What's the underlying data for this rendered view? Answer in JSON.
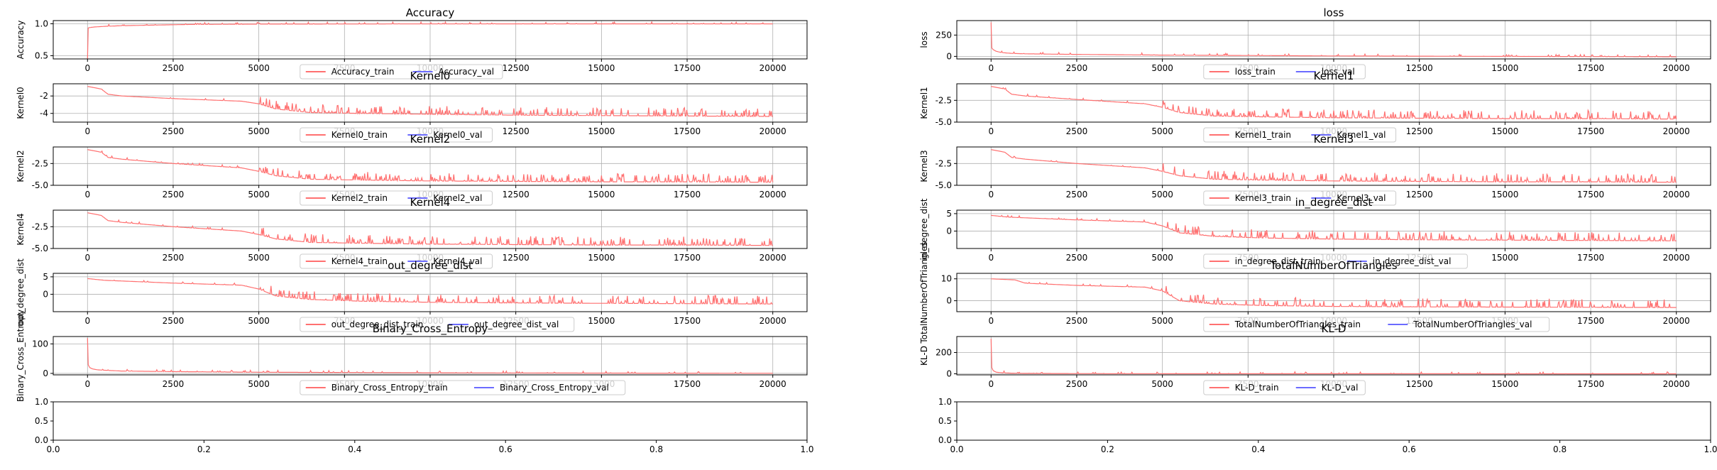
{
  "figure": {
    "colors": {
      "train": "#ff7070",
      "val": "#6b6bff",
      "grid": "#b0b0b0"
    },
    "ticks_x": [
      "0",
      "2500",
      "5000",
      "7500",
      "10000",
      "12500",
      "15000",
      "17500",
      "20000"
    ]
  },
  "chart_data": [
    {
      "type": "line",
      "title": "Accuracy",
      "ylabel": "Accuracy",
      "xlim": [
        0,
        20000
      ],
      "ylim": [
        0.45,
        1.05
      ],
      "yticks": [
        "0.5",
        "1.0"
      ],
      "ytick_values": [
        0.5,
        1.0
      ],
      "series": [
        {
          "name": "Accuracy_train",
          "x": [
            0,
            10,
            50,
            200,
            500,
            1000,
            2000,
            3000,
            5000,
            10000,
            15000,
            20000
          ],
          "y": [
            0.45,
            0.93,
            0.94,
            0.95,
            0.96,
            0.97,
            0.98,
            0.99,
            0.995,
            0.998,
            0.999,
            0.999
          ]
        },
        {
          "name": "Accuracy_val",
          "x": [],
          "y": []
        }
      ]
    },
    {
      "type": "line",
      "title": "loss",
      "ylabel": "loss",
      "xlim": [
        0,
        20000
      ],
      "ylim": [
        -30,
        420
      ],
      "yticks": [
        "0",
        "250"
      ],
      "ytick_values": [
        0,
        250
      ],
      "series": [
        {
          "name": "loss_train",
          "x": [
            0,
            20,
            60,
            150,
            300,
            600,
            1000,
            2000,
            5000,
            10000,
            15000,
            20000
          ],
          "y": [
            400,
            100,
            80,
            60,
            45,
            35,
            30,
            25,
            15,
            5,
            0,
            -5
          ]
        },
        {
          "name": "loss_val",
          "x": [],
          "y": []
        }
      ]
    },
    {
      "type": "line",
      "title": "Kernel0",
      "ylabel": "Kernel0",
      "xlim": [
        0,
        20000
      ],
      "ylim": [
        -5.0,
        -0.6
      ],
      "yticks": [
        "-2",
        "-4"
      ],
      "ytick_values": [
        -2,
        -4
      ],
      "series": [
        {
          "name": "Kernel0_train",
          "x": [
            0,
            400,
            600,
            1000,
            2500,
            4500,
            5000,
            5500,
            6500,
            8000,
            10000,
            12500,
            15000,
            17500,
            20000
          ],
          "y": [
            -0.9,
            -1.2,
            -1.8,
            -2.0,
            -2.3,
            -2.6,
            -2.9,
            -3.5,
            -3.9,
            -4.0,
            -4.1,
            -4.2,
            -4.25,
            -4.3,
            -4.35
          ]
        },
        {
          "name": "Kernel0_val",
          "x": [],
          "y": []
        }
      ]
    },
    {
      "type": "line",
      "title": "Kernel1",
      "ylabel": "Kernel1",
      "xlim": [
        0,
        20000
      ],
      "ylim": [
        -5.0,
        -0.6
      ],
      "yticks": [
        "-2.5",
        "-5.0"
      ],
      "ytick_values": [
        -2.5,
        -5.0
      ],
      "series": [
        {
          "name": "Kernel1_train",
          "x": [
            0,
            400,
            600,
            1000,
            2500,
            4500,
            5000,
            5500,
            6500,
            8000,
            10000,
            12500,
            15000,
            17500,
            20000
          ],
          "y": [
            -0.9,
            -1.2,
            -1.8,
            -2.0,
            -2.4,
            -2.9,
            -3.3,
            -3.9,
            -4.3,
            -4.4,
            -4.5,
            -4.55,
            -4.6,
            -4.6,
            -4.65
          ]
        },
        {
          "name": "Kernel1_val",
          "x": [],
          "y": []
        }
      ]
    },
    {
      "type": "line",
      "title": "Kernel2",
      "ylabel": "Kernel2",
      "xlim": [
        0,
        20000
      ],
      "ylim": [
        -5.0,
        -0.6
      ],
      "yticks": [
        "-2.5",
        "-5.0"
      ],
      "ytick_values": [
        -2.5,
        -5.0
      ],
      "series": [
        {
          "name": "Kernel2_train",
          "x": [
            0,
            400,
            600,
            1000,
            2500,
            4500,
            5000,
            5500,
            6500,
            8000,
            10000,
            12500,
            15000,
            17500,
            20000
          ],
          "y": [
            -0.9,
            -1.2,
            -1.8,
            -2.0,
            -2.5,
            -3.0,
            -3.4,
            -3.9,
            -4.3,
            -4.4,
            -4.5,
            -4.55,
            -4.6,
            -4.6,
            -4.65
          ]
        },
        {
          "name": "Kernel2_val",
          "x": [],
          "y": []
        }
      ]
    },
    {
      "type": "line",
      "title": "Kernel3",
      "ylabel": "Kernel3",
      "xlim": [
        0,
        20000
      ],
      "ylim": [
        -5.0,
        -0.6
      ],
      "yticks": [
        "-2.5",
        "-5.0"
      ],
      "ytick_values": [
        -2.5,
        -5.0
      ],
      "series": [
        {
          "name": "Kernel3_train",
          "x": [
            0,
            400,
            600,
            1000,
            2500,
            4500,
            5000,
            5500,
            6500,
            8000,
            10000,
            12500,
            15000,
            17500,
            20000
          ],
          "y": [
            -0.9,
            -1.2,
            -1.8,
            -2.0,
            -2.5,
            -3.0,
            -3.4,
            -3.9,
            -4.3,
            -4.4,
            -4.5,
            -4.55,
            -4.6,
            -4.6,
            -4.65
          ]
        },
        {
          "name": "Kernel3_val",
          "x": [],
          "y": []
        }
      ]
    },
    {
      "type": "line",
      "title": "Kernel4",
      "ylabel": "Kernel4",
      "xlim": [
        0,
        20000
      ],
      "ylim": [
        -5.0,
        -0.6
      ],
      "yticks": [
        "-2.5",
        "-5.0"
      ],
      "ytick_values": [
        -2.5,
        -5.0
      ],
      "series": [
        {
          "name": "Kernel4_train",
          "x": [
            0,
            400,
            600,
            1000,
            2500,
            4500,
            5000,
            5500,
            6500,
            8000,
            10000,
            12500,
            15000,
            17500,
            20000
          ],
          "y": [
            -0.9,
            -1.2,
            -1.8,
            -2.0,
            -2.5,
            -3.0,
            -3.4,
            -3.9,
            -4.3,
            -4.4,
            -4.5,
            -4.55,
            -4.6,
            -4.6,
            -4.65
          ]
        },
        {
          "name": "Kernel4_val",
          "x": [],
          "y": []
        }
      ]
    },
    {
      "type": "line",
      "title": "in_degree_dist",
      "ylabel": "in_degree_dist",
      "xlim": [
        0,
        20000
      ],
      "ylim": [
        -5.0,
        6.0
      ],
      "yticks": [
        "5",
        "0"
      ],
      "ytick_values": [
        5,
        0
      ],
      "series": [
        {
          "name": "in_degree_dist_train",
          "x": [
            0,
            500,
            1000,
            2500,
            4500,
            5000,
            5500,
            6500,
            8000,
            10000,
            12500,
            15000,
            17500,
            20000
          ],
          "y": [
            4.5,
            4.0,
            3.8,
            3.2,
            2.6,
            1.5,
            -0.5,
            -1.5,
            -2.0,
            -2.3,
            -2.5,
            -2.6,
            -2.7,
            -2.8
          ]
        },
        {
          "name": "in_degree_dist_val",
          "x": [],
          "y": []
        }
      ]
    },
    {
      "type": "line",
      "title": "out_degree_dist",
      "ylabel": "out_degree_dist",
      "xlim": [
        0,
        20000
      ],
      "ylim": [
        -5.0,
        6.0
      ],
      "yticks": [
        "5",
        "0"
      ],
      "ytick_values": [
        5,
        0
      ],
      "series": [
        {
          "name": "out_degree_dist_train",
          "x": [
            0,
            500,
            1000,
            2500,
            4500,
            5000,
            5500,
            6500,
            8000,
            10000,
            12500,
            15000,
            17500,
            20000
          ],
          "y": [
            4.5,
            4.0,
            3.8,
            3.2,
            2.6,
            1.5,
            -0.5,
            -1.5,
            -2.0,
            -2.3,
            -2.5,
            -2.6,
            -2.7,
            -2.8
          ]
        },
        {
          "name": "out_degree_dist_val",
          "x": [],
          "y": []
        }
      ]
    },
    {
      "type": "line",
      "title": "TotalNumberOfTriangles",
      "ylabel": "TotalNumberOfTriangles",
      "xlim": [
        0,
        20000
      ],
      "ylim": [
        -5.0,
        12.5
      ],
      "yticks": [
        "10",
        "0"
      ],
      "ytick_values": [
        10,
        0
      ],
      "series": [
        {
          "name": "TotalNumberOfTriangles_train",
          "x": [
            0,
            700,
            1000,
            2500,
            4500,
            5000,
            5500,
            6500,
            8000,
            10000,
            12500,
            15000,
            17500,
            20000
          ],
          "y": [
            10,
            9.5,
            8,
            7,
            6.2,
            4.5,
            0,
            -1.5,
            -2.2,
            -2.6,
            -2.8,
            -2.9,
            -3.0,
            -3.1
          ]
        },
        {
          "name": "TotalNumberOfTriangles_val",
          "x": [],
          "y": []
        }
      ]
    },
    {
      "type": "line",
      "title": "Binary_Cross_Entropy",
      "ylabel": "Binary_Cross_Entropy",
      "xlim": [
        0,
        20000
      ],
      "ylim": [
        -5,
        125
      ],
      "yticks": [
        "100",
        "0"
      ],
      "ytick_values": [
        100,
        0
      ],
      "series": [
        {
          "name": "Binary_Cross_Entropy_train",
          "x": [
            0,
            20,
            60,
            150,
            300,
            600,
            1000,
            2500,
            5000,
            10000,
            15000,
            20000
          ],
          "y": [
            120,
            30,
            20,
            15,
            12,
            10,
            8,
            6,
            4,
            2,
            1,
            0.5
          ]
        },
        {
          "name": "Binary_Cross_Entropy_val",
          "x": [],
          "y": []
        }
      ]
    },
    {
      "type": "line",
      "title": "KL-D",
      "ylabel": "KL-D",
      "xlim": [
        0,
        20000
      ],
      "ylim": [
        -10,
        350
      ],
      "yticks": [
        "200",
        "0"
      ],
      "ytick_values": [
        200,
        0
      ],
      "series": [
        {
          "name": "KL-D_train",
          "x": [
            0,
            20,
            60,
            150,
            300,
            600,
            1000,
            2500,
            5000,
            10000,
            15000,
            20000
          ],
          "y": [
            330,
            60,
            30,
            15,
            10,
            6,
            4,
            2,
            1,
            0.5,
            0.3,
            0.2
          ]
        },
        {
          "name": "KL-D_val",
          "x": [],
          "y": []
        }
      ]
    },
    {
      "type": "line",
      "title": "",
      "ylabel": "",
      "xlim": [
        0,
        1
      ],
      "ylim": [
        0,
        1
      ],
      "xticks": [
        "0.0",
        "0.2",
        "0.4",
        "0.6",
        "0.8",
        "1.0"
      ],
      "xtick_values": [
        0,
        0.2,
        0.4,
        0.6,
        0.8,
        1.0
      ],
      "yticks": [
        "0.0",
        "0.5",
        "1.0"
      ],
      "ytick_values": [
        0,
        0.5,
        1.0
      ],
      "empty": true,
      "grid": false,
      "series": []
    },
    {
      "type": "line",
      "title": "",
      "ylabel": "",
      "xlim": [
        0,
        1
      ],
      "ylim": [
        0,
        1
      ],
      "xticks": [
        "0.0",
        "0.2",
        "0.4",
        "0.6",
        "0.8",
        "1.0"
      ],
      "xtick_values": [
        0,
        0.2,
        0.4,
        0.6,
        0.8,
        1.0
      ],
      "yticks": [
        "0.0",
        "0.5",
        "1.0"
      ],
      "ytick_values": [
        0,
        0.5,
        1.0
      ],
      "empty": true,
      "grid": false,
      "series": []
    }
  ]
}
